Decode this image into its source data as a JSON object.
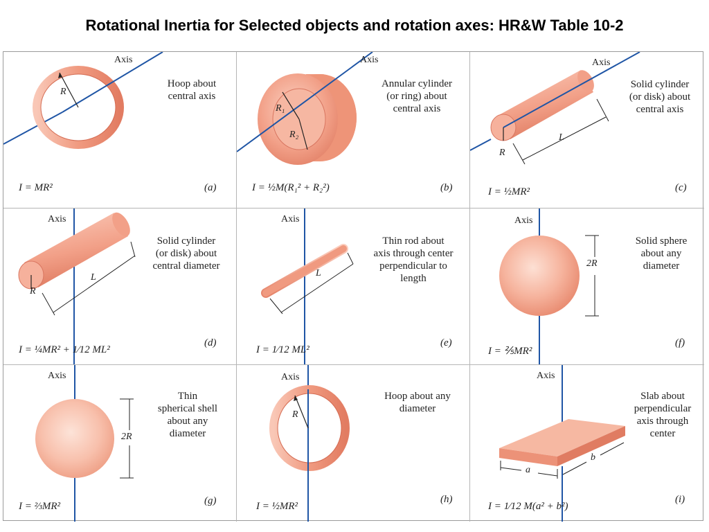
{
  "title": "Rotational Inertia for Selected objects and rotation axes: HR&W Table 10-2",
  "colors": {
    "object": "#f4a58d",
    "axis": "#1f55a5",
    "grid": "#b5b5b5"
  },
  "panels": [
    {
      "letter": "(a)",
      "axis_label": "Axis",
      "desc_lines": [
        "Hoop about",
        "central axis"
      ],
      "formula": "I = MR²",
      "dims": [
        "R"
      ]
    },
    {
      "letter": "(b)",
      "axis_label": "Axis",
      "desc_lines": [
        "Annular cylinder",
        "(or ring) about",
        "central axis"
      ],
      "formula": "I = ½M(R₁² + R₂²)",
      "dims": [
        "R₁",
        "R₂"
      ]
    },
    {
      "letter": "(c)",
      "axis_label": "Axis",
      "desc_lines": [
        "Solid cylinder",
        "(or disk) about",
        "central axis"
      ],
      "formula": "I = ½MR²",
      "dims": [
        "R",
        "L"
      ]
    },
    {
      "letter": "(d)",
      "axis_label": "Axis",
      "desc_lines": [
        "Solid cylinder",
        "(or disk) about",
        "central diameter"
      ],
      "formula": "I = ¼MR² + 1⁄12 ML²",
      "dims": [
        "R",
        "L"
      ]
    },
    {
      "letter": "(e)",
      "axis_label": "Axis",
      "desc_lines": [
        "Thin rod about",
        "axis through center",
        "perpendicular to",
        "length"
      ],
      "formula": "I = 1⁄12 ML²",
      "dims": [
        "L"
      ]
    },
    {
      "letter": "(f)",
      "axis_label": "Axis",
      "desc_lines": [
        "Solid sphere",
        "about any",
        "diameter"
      ],
      "formula": "I = ⅖MR²",
      "dims": [
        "2R"
      ]
    },
    {
      "letter": "(g)",
      "axis_label": "Axis",
      "desc_lines": [
        "Thin",
        "spherical shell",
        "about any",
        "diameter"
      ],
      "formula": "I = ⅔MR²",
      "dims": [
        "2R"
      ]
    },
    {
      "letter": "(h)",
      "axis_label": "Axis",
      "desc_lines": [
        "Hoop about any",
        "diameter"
      ],
      "formula": "I = ½MR²",
      "dims": [
        "R"
      ]
    },
    {
      "letter": "(i)",
      "axis_label": "Axis",
      "desc_lines": [
        "Slab about",
        "perpendicular",
        "axis through",
        "center"
      ],
      "formula": "I = 1⁄12 M(a² + b²)",
      "dims": [
        "a",
        "b"
      ]
    }
  ]
}
